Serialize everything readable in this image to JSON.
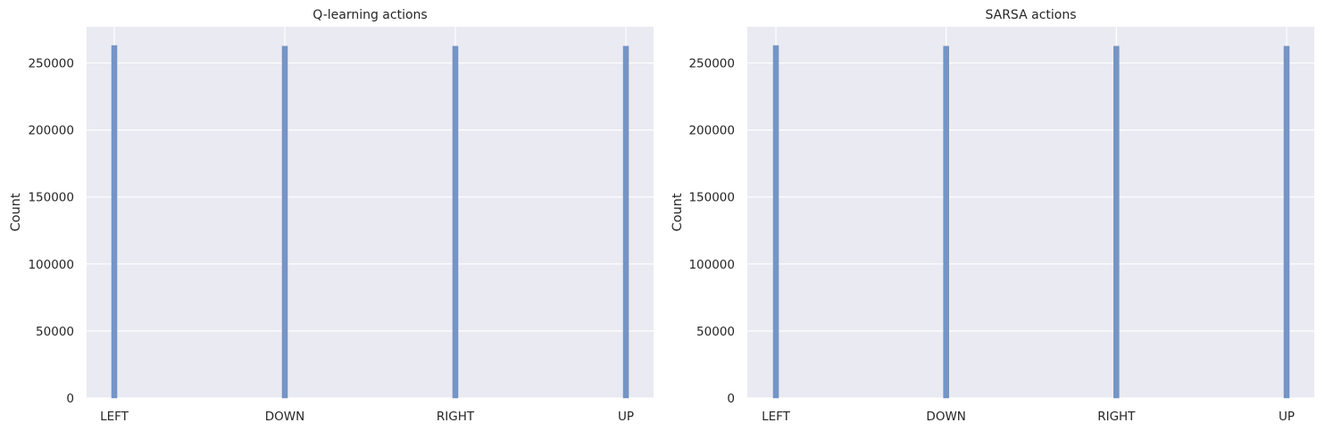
{
  "chart_data": [
    {
      "type": "bar",
      "title": "Q-learning actions",
      "xlabel": "",
      "ylabel": "Count",
      "categories": [
        "LEFT",
        "DOWN",
        "RIGHT",
        "UP"
      ],
      "values": [
        263000,
        262500,
        262500,
        262500
      ],
      "ylim": [
        0,
        277000
      ],
      "yticks": [
        "0",
        "50000",
        "100000",
        "150000",
        "200000",
        "250000"
      ],
      "grid": true,
      "bar_color": "#7595c6",
      "background": "#eaeaf2"
    },
    {
      "type": "bar",
      "title": "SARSA actions",
      "xlabel": "",
      "ylabel": "Count",
      "categories": [
        "LEFT",
        "DOWN",
        "RIGHT",
        "UP"
      ],
      "values": [
        263000,
        262500,
        262500,
        262500
      ],
      "ylim": [
        0,
        277000
      ],
      "yticks": [
        "0",
        "50000",
        "100000",
        "150000",
        "200000",
        "250000"
      ],
      "grid": true,
      "bar_color": "#7595c6",
      "background": "#eaeaf2"
    }
  ]
}
